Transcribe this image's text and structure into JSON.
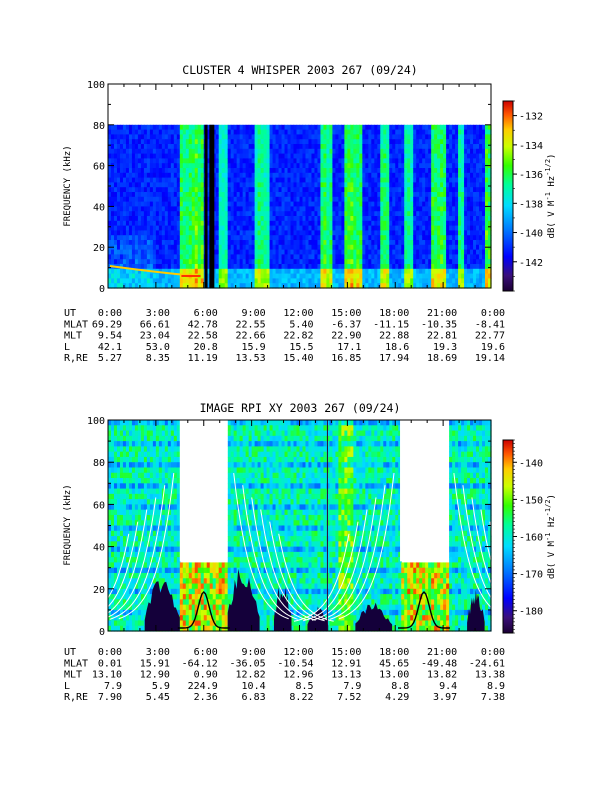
{
  "chart_data": [
    {
      "type": "heatmap",
      "title": "CLUSTER 4 WHISPER 2003 267 (09/24)",
      "ylabel": "FREQUENCY (kHz)",
      "ylim": [
        0,
        100
      ],
      "yticks": [
        "0",
        "20",
        "40",
        "60",
        "80",
        "100"
      ],
      "data_top_khz": 80,
      "colorbar": {
        "label": "dB( V M⁻¹ Hz⁻¹ᐟ²)",
        "label_parts": [
          "dB( V M",
          "-1",
          " Hz",
          "-1/2",
          ")"
        ],
        "range": [
          -144,
          -131
        ],
        "ticks": [
          "-132",
          "-134",
          "-136",
          "-138",
          "-140",
          "-142"
        ]
      },
      "xaxis": {
        "row_labels": [
          "UT",
          "MLAT",
          "MLT",
          "L",
          "R,RE"
        ],
        "columns": [
          [
            "0:00",
            "69.29",
            "9.54",
            "42.1",
            "5.27"
          ],
          [
            "3:00",
            "66.61",
            "23.04",
            "53.0",
            "8.35"
          ],
          [
            "6:00",
            "42.78",
            "22.58",
            "20.8",
            "11.19"
          ],
          [
            "9:00",
            "22.55",
            "22.66",
            "15.9",
            "13.53"
          ],
          [
            "12:00",
            "5.40",
            "22.82",
            "15.5",
            "15.40"
          ],
          [
            "15:00",
            "-6.37",
            "22.90",
            "17.1",
            "16.85"
          ],
          [
            "18:00",
            "-11.15",
            "22.88",
            "18.6",
            "17.94"
          ],
          [
            "21:00",
            "-10.35",
            "22.81",
            "19.3",
            "18.69"
          ],
          [
            "0:00",
            "-8.41",
            "22.77",
            "19.6",
            "19.14"
          ]
        ]
      }
    },
    {
      "type": "heatmap",
      "title": "IMAGE RPI XY 2003 267 (09/24)",
      "ylabel": "FREQUENCY (kHz)",
      "ylim": [
        0,
        100
      ],
      "yticks": [
        "0",
        "20",
        "40",
        "60",
        "80",
        "100"
      ],
      "gaps_ut_hours": [
        [
          4.5,
          7.5
        ],
        [
          18.3,
          21.3
        ]
      ],
      "lowband_top_khz": 33,
      "colorbar": {
        "label_parts": [
          "dB( V M",
          "-1",
          " Hz",
          "-1/2",
          ")"
        ],
        "range": [
          -186,
          -134
        ],
        "ticks": [
          "-140",
          "-150",
          "-160",
          "-170",
          "-180"
        ]
      },
      "xaxis": {
        "row_labels": [
          "UT",
          "MLAT",
          "MLT",
          "L",
          "R,RE"
        ],
        "columns": [
          [
            "0:00",
            "0.01",
            "13.10",
            "7.9",
            "7.90"
          ],
          [
            "3:00",
            "15.91",
            "12.90",
            "5.9",
            "5.45"
          ],
          [
            "6:00",
            "-64.12",
            "0.90",
            "224.9",
            "2.36"
          ],
          [
            "9:00",
            "-36.05",
            "12.82",
            "10.4",
            "6.83"
          ],
          [
            "12:00",
            "-10.54",
            "12.96",
            "8.5",
            "8.22"
          ],
          [
            "15:00",
            "12.91",
            "13.13",
            "7.9",
            "7.52"
          ],
          [
            "18:00",
            "45.65",
            "13.00",
            "8.8",
            "4.29"
          ],
          [
            "21:00",
            "-49.48",
            "13.82",
            "9.4",
            "3.97"
          ],
          [
            "0:00",
            "-24.61",
            "13.38",
            "8.9",
            "7.38"
          ]
        ]
      }
    }
  ]
}
